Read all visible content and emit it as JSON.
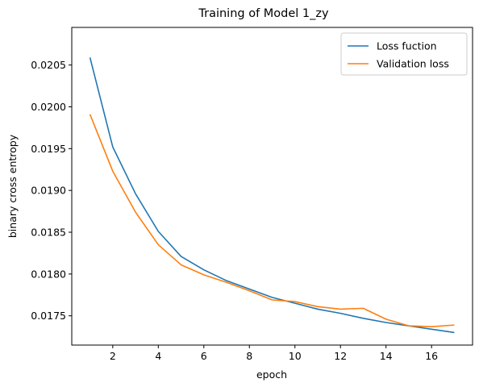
{
  "chart_data": {
    "type": "line",
    "title": "Training of Model 1_zy",
    "xlabel": "epoch",
    "ylabel": "binary cross entropy",
    "x": [
      1,
      2,
      3,
      4,
      5,
      6,
      7,
      8,
      9,
      10,
      11,
      12,
      13,
      14,
      15,
      16,
      17
    ],
    "xlim": [
      0.2,
      17.8
    ],
    "ylim": [
      0.01715,
      0.02095
    ],
    "xticks": [
      2,
      4,
      6,
      8,
      10,
      12,
      14,
      16
    ],
    "yticks": [
      0.0175,
      0.018,
      0.0185,
      0.019,
      0.0195,
      0.02,
      0.0205
    ],
    "ytick_labels": [
      "0.0175",
      "0.0180",
      "0.0185",
      "0.0190",
      "0.0195",
      "0.0200",
      "0.0205"
    ],
    "grid": false,
    "legend_position": "top-right",
    "series": [
      {
        "name": "Loss fuction",
        "color": "#1f77b4",
        "values": [
          0.02059,
          0.01952,
          0.01896,
          0.01851,
          0.01821,
          0.01805,
          0.01792,
          0.01782,
          0.01772,
          0.01765,
          0.01758,
          0.01753,
          0.01747,
          0.01742,
          0.01738,
          0.01734,
          0.0173
        ]
      },
      {
        "name": "Validation loss",
        "color": "#ff7f0e",
        "values": [
          0.01991,
          0.01923,
          0.01874,
          0.01835,
          0.01811,
          0.01799,
          0.0179,
          0.0178,
          0.01769,
          0.01767,
          0.01761,
          0.01758,
          0.01759,
          0.01746,
          0.01738,
          0.01737,
          0.01739
        ]
      }
    ]
  }
}
